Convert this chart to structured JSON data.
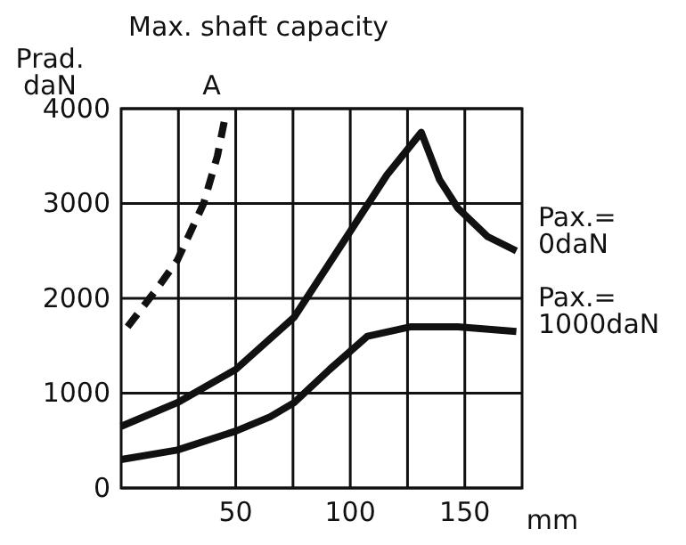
{
  "chart_data": {
    "type": "line",
    "title": "Max. shaft capacity",
    "ylabel": "Prad.\ndaN",
    "xlabel": "mm",
    "xlim": [
      0,
      175
    ],
    "ylim": [
      0,
      4000
    ],
    "xticks": [
      {
        "value": 25,
        "label": null
      },
      50,
      {
        "value": 75,
        "label": null
      },
      100,
      {
        "value": 125,
        "label": null
      },
      150
    ],
    "yticks": [
      0,
      1000,
      2000,
      3000,
      4000
    ],
    "grid": true,
    "series": [
      {
        "name": "A",
        "color": "#111111",
        "line_style": "dashed",
        "x": [
          2.8,
          15.6,
          24.5,
          36,
          42,
          45.7
        ],
        "values": [
          1700,
          2100,
          2400,
          3000,
          3500,
          3950
        ]
      },
      {
        "name": "Pax.=\n0daN",
        "color": "#111111",
        "line_style": "solid",
        "x": [
          0,
          24.5,
          50,
          75.5,
          98.5,
          116,
          131,
          139,
          147,
          160,
          172.5
        ],
        "values": [
          650,
          900,
          1250,
          1800,
          2650,
          3300,
          3750,
          3250,
          2950,
          2650,
          2500
        ]
      },
      {
        "name": "Pax.=\n1000daN",
        "color": "#111111",
        "line_style": "solid",
        "x": [
          0,
          24.5,
          50,
          65,
          75.5,
          91,
          107.5,
          126.5,
          147,
          172.5
        ],
        "values": [
          300,
          400,
          600,
          750,
          900,
          1250,
          1600,
          1700,
          1700,
          1650
        ]
      }
    ]
  }
}
